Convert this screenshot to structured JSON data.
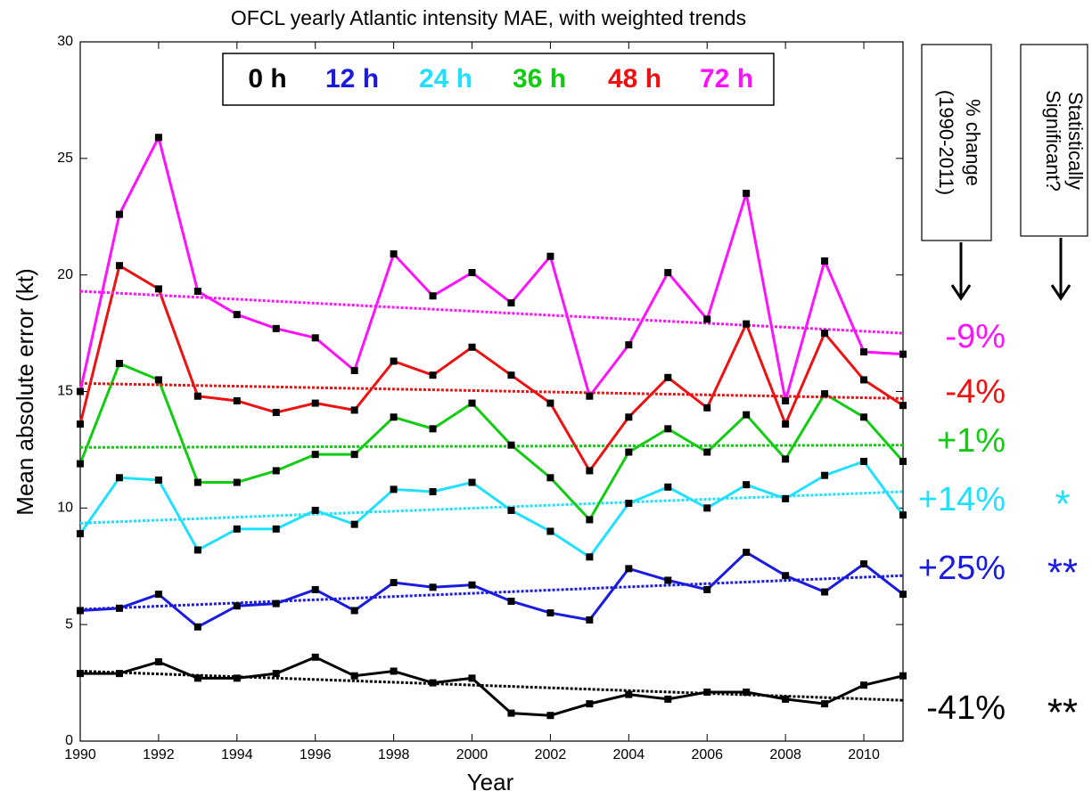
{
  "chart_data": {
    "type": "line",
    "title": "OFCL  yearly Atlantic intensity MAE, with weighted trends",
    "x_label": "Year",
    "y_label": "Mean absolute error (kt)",
    "x": [
      1990,
      1991,
      1992,
      1993,
      1994,
      1995,
      1996,
      1997,
      1998,
      1999,
      2000,
      2001,
      2002,
      2003,
      2004,
      2005,
      2006,
      2007,
      2008,
      2009,
      2010,
      2011
    ],
    "xlim": [
      1990,
      2011
    ],
    "xticks": [
      1990,
      1992,
      1994,
      1996,
      1998,
      2000,
      2002,
      2004,
      2006,
      2008,
      2010
    ],
    "ylim": [
      0,
      30
    ],
    "yticks": [
      0,
      5,
      10,
      15,
      20,
      25,
      30
    ],
    "series": [
      {
        "name": "0 h",
        "color": "#000000",
        "values": [
          2.9,
          2.9,
          3.4,
          2.7,
          2.7,
          2.9,
          3.6,
          2.8,
          3.0,
          2.5,
          2.7,
          1.2,
          1.1,
          1.6,
          2.0,
          1.8,
          2.1,
          2.1,
          1.8,
          1.6,
          2.4,
          2.8
        ],
        "trend": [
          3.0,
          1.75
        ],
        "change": "-41%",
        "significance": "**"
      },
      {
        "name": "12 h",
        "color": "#1a1ae0",
        "values": [
          5.6,
          5.7,
          6.3,
          4.9,
          5.8,
          5.9,
          6.5,
          5.6,
          6.8,
          6.6,
          6.7,
          6.0,
          5.5,
          5.2,
          7.4,
          6.9,
          6.5,
          8.1,
          7.1,
          6.4,
          7.6,
          6.3
        ],
        "trend": [
          5.65,
          7.1
        ],
        "change": "+25%",
        "significance": "**"
      },
      {
        "name": "24 h",
        "color": "#1fe0ff",
        "values": [
          8.9,
          11.3,
          11.2,
          8.2,
          9.1,
          9.1,
          9.9,
          9.3,
          10.8,
          10.7,
          11.1,
          9.9,
          9.0,
          7.9,
          10.2,
          10.9,
          10.0,
          11.0,
          10.4,
          11.4,
          12.0,
          9.7
        ],
        "trend": [
          9.35,
          10.7
        ],
        "change": "+14%",
        "significance": "*"
      },
      {
        "name": "36 h",
        "color": "#11cc11",
        "values": [
          11.9,
          16.2,
          15.5,
          11.1,
          11.1,
          11.6,
          12.3,
          12.3,
          13.9,
          13.4,
          14.5,
          12.7,
          11.3,
          9.5,
          12.4,
          13.4,
          12.4,
          14.0,
          12.1,
          14.9,
          13.9,
          12.0
        ],
        "trend": [
          12.6,
          12.7
        ],
        "change": "+1%"
      },
      {
        "name": "48 h",
        "color": "#ee1111",
        "values": [
          13.6,
          20.4,
          19.4,
          14.8,
          14.6,
          14.1,
          14.5,
          14.2,
          16.3,
          15.7,
          16.9,
          15.7,
          14.5,
          11.6,
          13.9,
          15.6,
          14.3,
          17.9,
          13.6,
          17.5,
          15.5,
          14.4
        ],
        "trend": [
          15.35,
          14.7
        ],
        "change": "-4%"
      },
      {
        "name": "72 h",
        "color": "#ff11ff",
        "values": [
          15.0,
          22.6,
          25.9,
          19.3,
          18.3,
          17.7,
          17.3,
          15.9,
          20.9,
          19.1,
          20.1,
          18.8,
          20.8,
          14.8,
          17.0,
          20.1,
          18.1,
          23.5,
          14.6,
          20.6,
          16.7,
          16.6
        ],
        "trend": [
          19.3,
          17.5
        ],
        "change": "-9%"
      }
    ],
    "change_header": [
      "% change",
      "(1990-2011)"
    ],
    "significance_header": [
      "Statistically",
      "Significant?"
    ]
  }
}
